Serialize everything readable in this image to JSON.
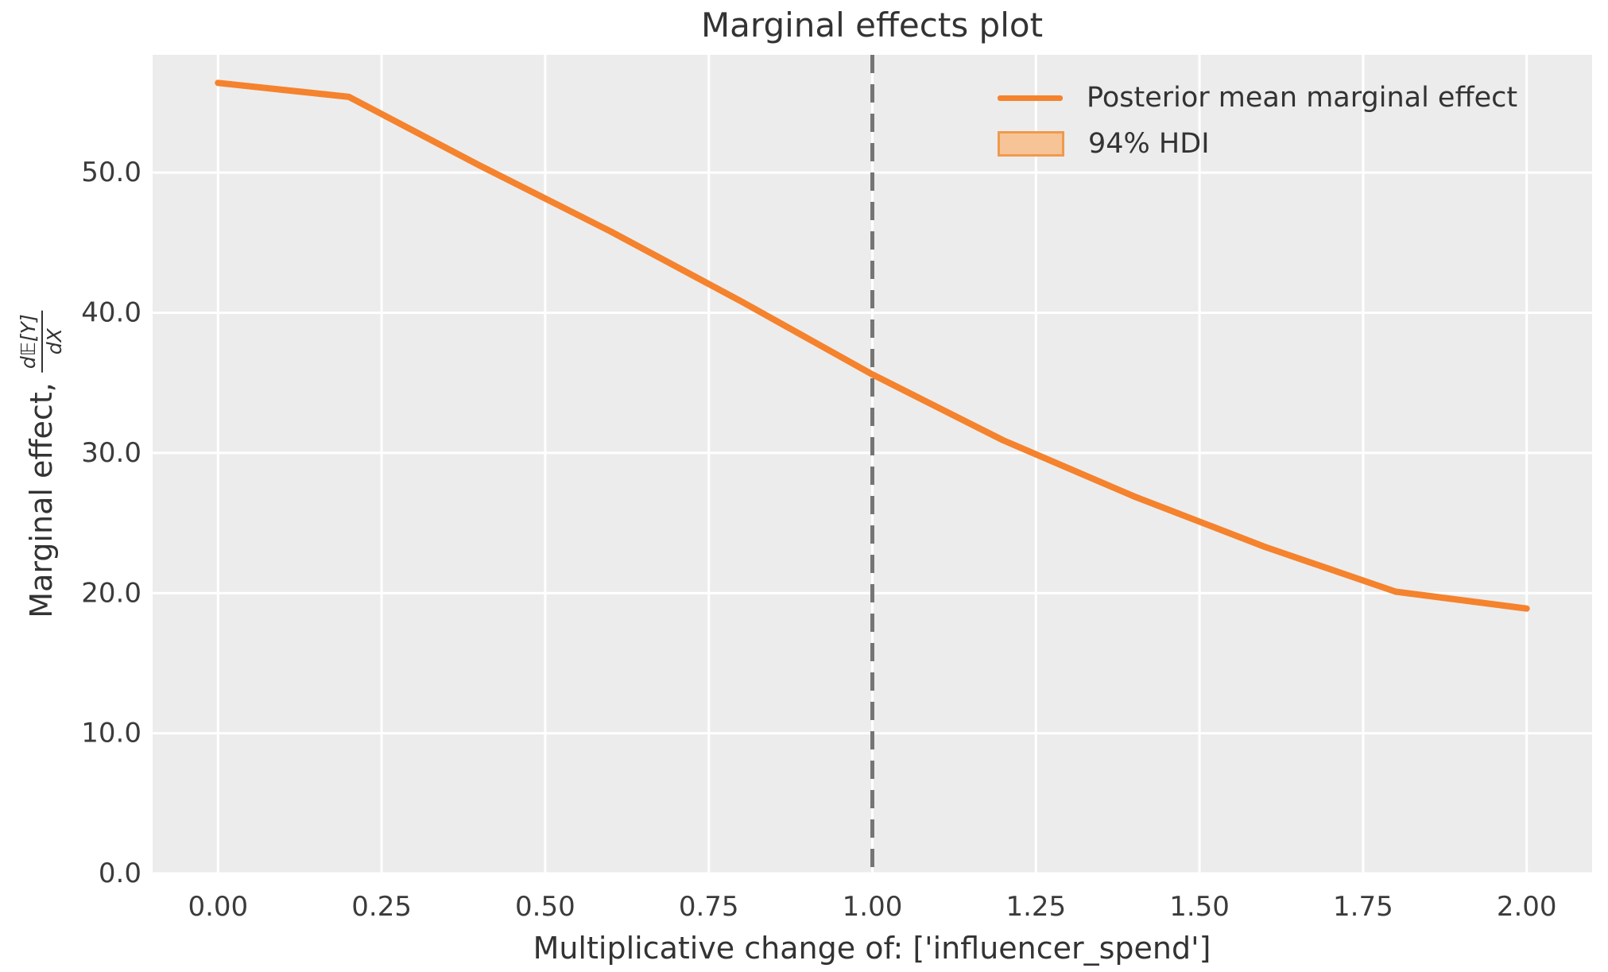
{
  "figure": {
    "title": "Marginal effects plot",
    "xlabel": "Multiplicative change of: ['influencer_spend']",
    "ylabel": {
      "prefix": "Marginal effect,",
      "fraction_numerator": "d𝔼[Y]",
      "fraction_denominator": "dX"
    }
  },
  "legend": {
    "position": "upper right",
    "entries": [
      {
        "label": "Posterior mean marginal effect",
        "swatch": "line"
      },
      {
        "label": "94% HDI",
        "swatch": "patch"
      }
    ]
  },
  "chart_data": {
    "type": "line",
    "title": "Marginal effects plot",
    "xlabel": "Multiplicative change of: ['influencer_spend']",
    "ylabel": "Marginal effect, d𝔼[Y]/dX",
    "xlim": [
      -0.1,
      2.1
    ],
    "ylim": [
      0,
      58.4
    ],
    "xtick_values": [
      0.0,
      0.25,
      0.5,
      0.75,
      1.0,
      1.25,
      1.5,
      1.75,
      2.0
    ],
    "xtick_labels": [
      "0.00",
      "0.25",
      "0.50",
      "0.75",
      "1.00",
      "1.25",
      "1.50",
      "1.75",
      "2.00"
    ],
    "ytick_values": [
      0,
      10,
      20,
      30,
      40,
      50
    ],
    "ytick_labels": [
      "0.0",
      "10.0",
      "20.0",
      "30.0",
      "40.0",
      "50.0"
    ],
    "grid": true,
    "legend_position": "upper right",
    "reference_vline_x": 1.0,
    "series": [
      {
        "name": "Posterior mean marginal effect",
        "x": [
          0.0,
          0.2,
          0.4,
          0.6,
          0.8,
          1.0,
          1.2,
          1.4,
          1.6,
          1.8,
          2.0
        ],
        "y": [
          56.4,
          55.4,
          50.5,
          45.8,
          40.8,
          35.6,
          30.9,
          26.9,
          23.3,
          20.1,
          18.9
        ]
      }
    ]
  },
  "colors": {
    "line": "#f5822d",
    "hdi_fill": "#f7c497",
    "hdi_edge": "#ef9a4d",
    "plot_background": "#ececec",
    "grid": "#ffffff",
    "reference_vline": "#757575",
    "text": "#333333",
    "figure_background": "#ffffff"
  }
}
